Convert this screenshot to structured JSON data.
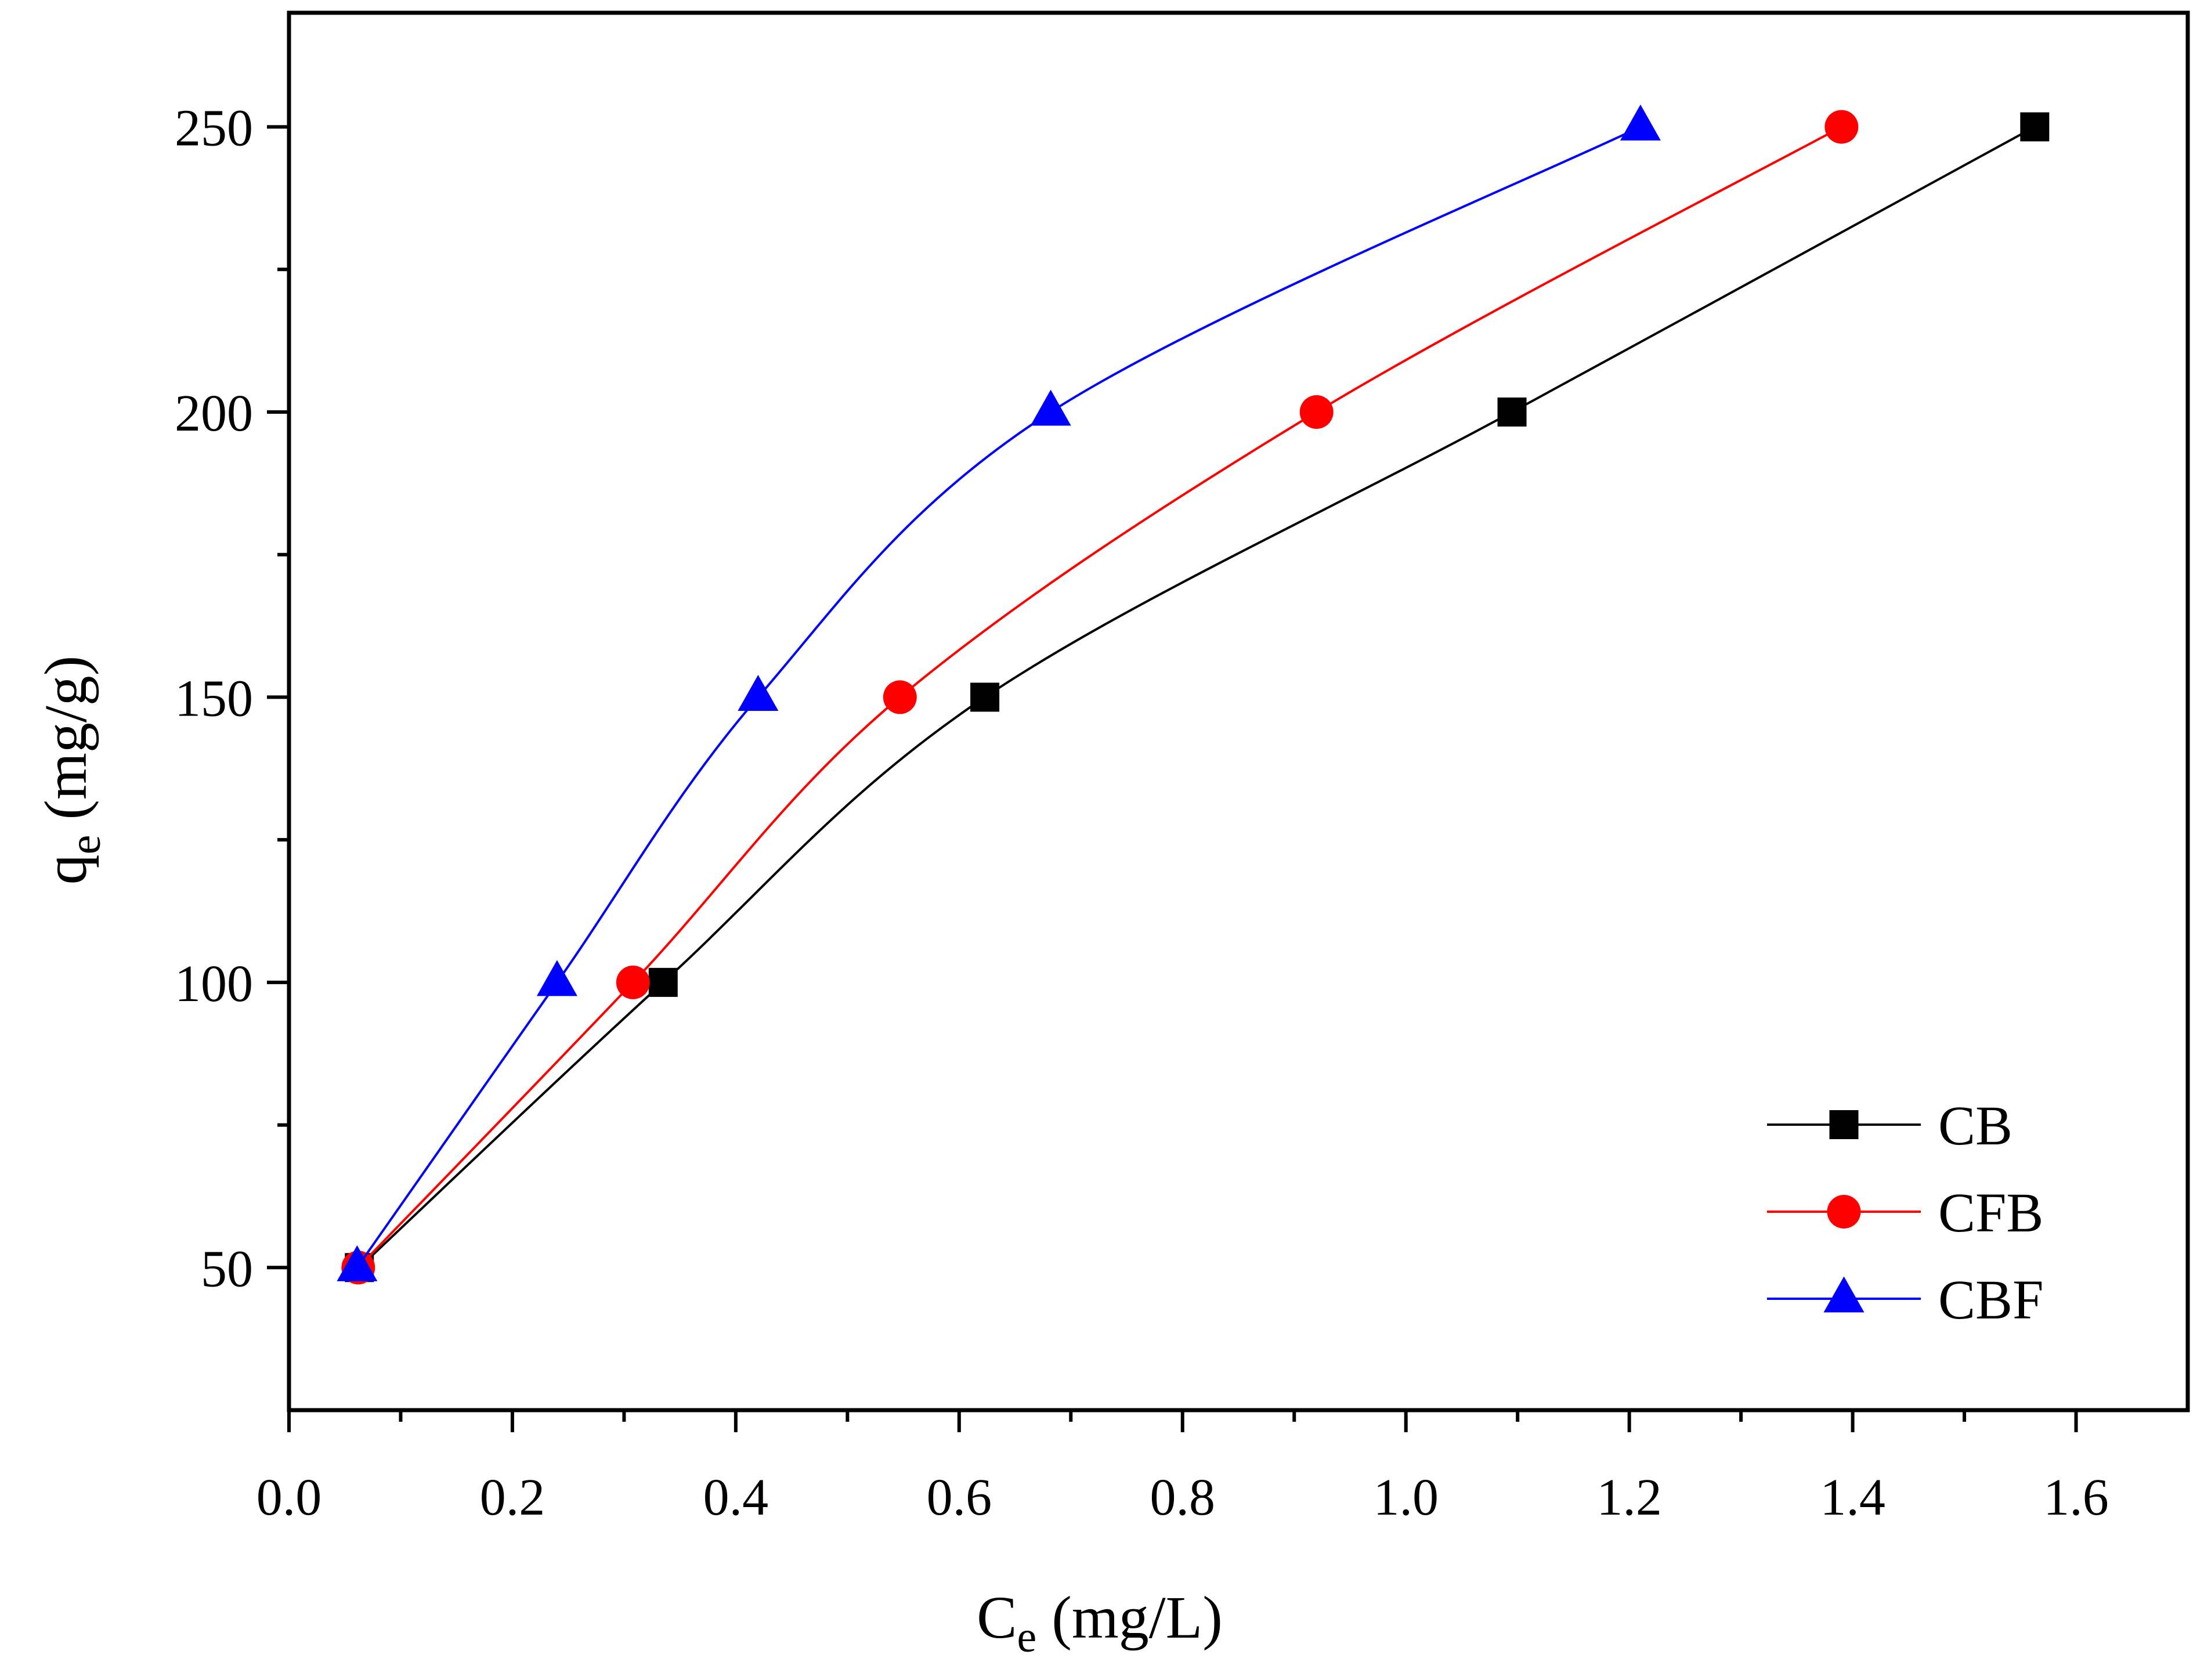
{
  "chart_data": {
    "type": "line",
    "title": "",
    "xlabel_main": "C",
    "xlabel_sub": "e",
    "xlabel_units": " (mg/L)",
    "ylabel_main": "q",
    "ylabel_sub": "e",
    "ylabel_units": " (mg/g)",
    "xlim": [
      0.0,
      1.7
    ],
    "ylim": [
      25,
      270
    ],
    "xticks": [
      0.0,
      0.2,
      0.4,
      0.6,
      0.8,
      1.0,
      1.2,
      1.4,
      1.6
    ],
    "xtick_labels": [
      "0.0",
      "0.2",
      "0.4",
      "0.6",
      "0.8",
      "1.0",
      "1.2",
      "1.4",
      "1.6"
    ],
    "yticks": [
      50,
      100,
      150,
      200,
      250
    ],
    "ytick_labels": [
      "50",
      "100",
      "150",
      "200",
      "250"
    ],
    "legend_position": "bottom-right",
    "series": [
      {
        "name": "CB",
        "color": "#000000",
        "marker": "square",
        "x": [
          0.063,
          0.335,
          0.623,
          1.095,
          1.563
        ],
        "y": [
          50,
          100,
          150,
          200,
          250
        ]
      },
      {
        "name": "CFB",
        "color": "#ff0000",
        "marker": "circle",
        "x": [
          0.062,
          0.308,
          0.547,
          0.92,
          1.39
        ],
        "y": [
          50,
          100,
          150,
          200,
          250
        ]
      },
      {
        "name": "CBF",
        "color": "#0000ff",
        "marker": "triangle",
        "x": [
          0.061,
          0.24,
          0.42,
          0.682,
          1.21
        ],
        "y": [
          50,
          100,
          150,
          200,
          250
        ]
      }
    ]
  }
}
